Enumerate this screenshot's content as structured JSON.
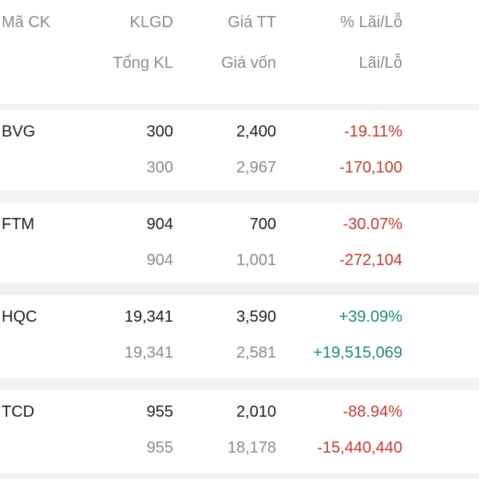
{
  "header": {
    "col1_line1": "Mã CK",
    "col2_line1": "KLGD",
    "col2_line2": "Tổng KL",
    "col3_line1": "Giá TT",
    "col3_line2": "Giá vốn",
    "col4_line1": "% Lãi/Lỗ",
    "col4_line2": "Lãi/Lỗ"
  },
  "holdings": [
    {
      "symbol": "BVG",
      "volume": "300",
      "total_volume": "300",
      "market_price": "2,400",
      "cost_price": "2,967",
      "pl_percent": "-19.11%",
      "pl_value": "-170,100",
      "status": "loss"
    },
    {
      "symbol": "FTM",
      "volume": "904",
      "total_volume": "904",
      "market_price": "700",
      "cost_price": "1,001",
      "pl_percent": "-30.07%",
      "pl_value": "-272,104",
      "status": "loss"
    },
    {
      "symbol": "HQC",
      "volume": "19,341",
      "total_volume": "19,341",
      "market_price": "3,590",
      "cost_price": "2,581",
      "pl_percent": "+39.09%",
      "pl_value": "+19,515,069",
      "status": "gain"
    },
    {
      "symbol": "TCD",
      "volume": "955",
      "total_volume": "955",
      "market_price": "2,010",
      "cost_price": "18,178",
      "pl_percent": "-88.94%",
      "pl_value": "-15,440,440",
      "status": "loss"
    }
  ],
  "colors": {
    "loss": "#c0392b",
    "gain": "#1e8a5a",
    "muted": "#8a8a8e",
    "text": "#1c1c1e",
    "separator": "#f2f2f2"
  }
}
